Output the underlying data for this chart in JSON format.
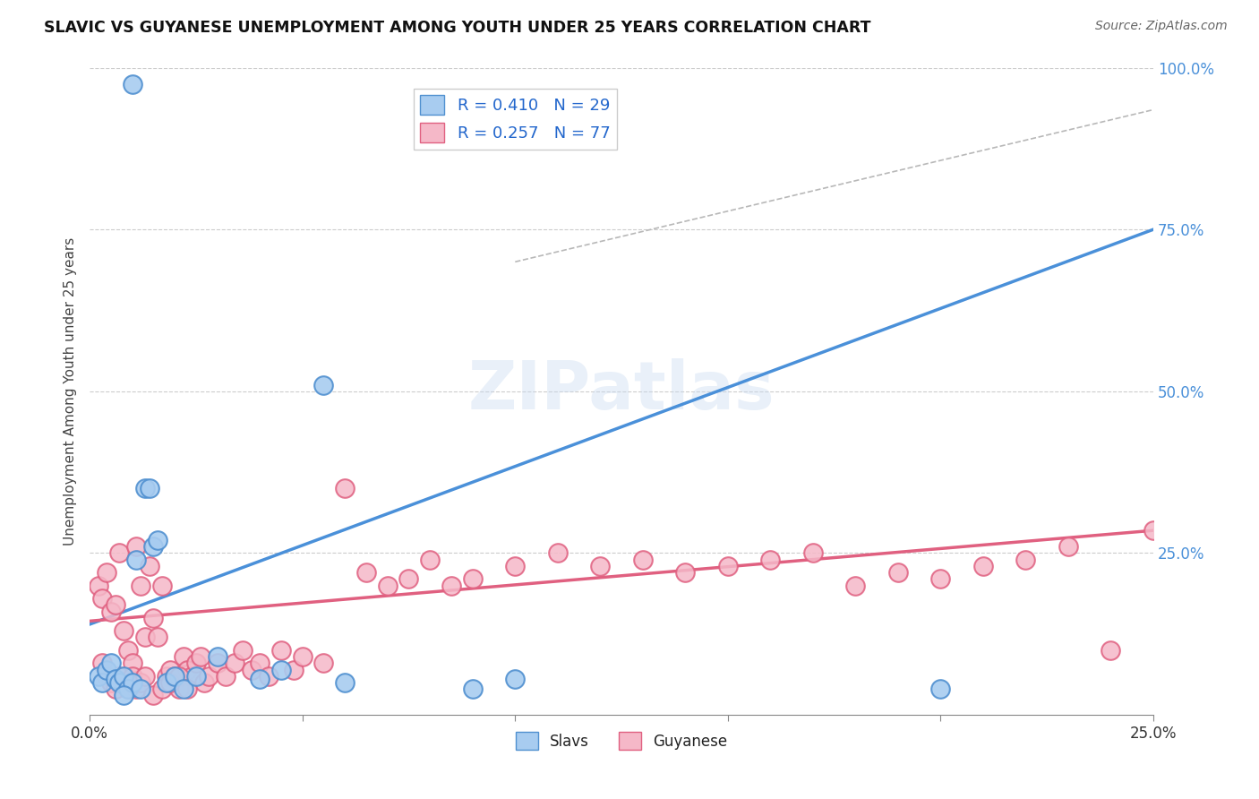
{
  "title": "SLAVIC VS GUYANESE UNEMPLOYMENT AMONG YOUTH UNDER 25 YEARS CORRELATION CHART",
  "source": "Source: ZipAtlas.com",
  "ylabel": "Unemployment Among Youth under 25 years",
  "xmin": 0.0,
  "xmax": 0.25,
  "ymin": 0.0,
  "ymax": 1.0,
  "slavs_R": 0.41,
  "slavs_N": 29,
  "guyanese_R": 0.257,
  "guyanese_N": 77,
  "slavs_color": "#a8ccf0",
  "guyanese_color": "#f5b8c8",
  "slavs_edge_color": "#5090d0",
  "guyanese_edge_color": "#e06080",
  "trend_slavs_color": "#4a90d9",
  "trend_guyanese_color": "#e06080",
  "watermark": "ZIPatlas",
  "bg_color": "#ffffff",
  "grid_color": "#cccccc",
  "slavs_x": [
    0.002,
    0.003,
    0.004,
    0.005,
    0.006,
    0.007,
    0.008,
    0.009,
    0.01,
    0.011,
    0.013,
    0.014,
    0.015,
    0.016,
    0.018,
    0.02,
    0.022,
    0.025,
    0.03,
    0.04,
    0.045,
    0.055,
    0.06,
    0.09,
    0.1,
    0.2,
    0.01,
    0.012,
    0.008
  ],
  "slavs_y": [
    0.06,
    0.05,
    0.07,
    0.08,
    0.055,
    0.05,
    0.06,
    0.04,
    0.05,
    0.24,
    0.35,
    0.35,
    0.26,
    0.27,
    0.05,
    0.06,
    0.04,
    0.06,
    0.09,
    0.055,
    0.07,
    0.51,
    0.05,
    0.04,
    0.055,
    0.04,
    0.975,
    0.04,
    0.03
  ],
  "guyanese_x": [
    0.002,
    0.003,
    0.004,
    0.005,
    0.006,
    0.007,
    0.008,
    0.009,
    0.01,
    0.011,
    0.012,
    0.013,
    0.014,
    0.015,
    0.016,
    0.017,
    0.018,
    0.019,
    0.02,
    0.021,
    0.022,
    0.023,
    0.024,
    0.025,
    0.026,
    0.027,
    0.028,
    0.03,
    0.032,
    0.034,
    0.036,
    0.038,
    0.04,
    0.042,
    0.045,
    0.048,
    0.05,
    0.055,
    0.06,
    0.065,
    0.07,
    0.075,
    0.08,
    0.085,
    0.09,
    0.003,
    0.004,
    0.005,
    0.006,
    0.007,
    0.008,
    0.009,
    0.01,
    0.011,
    0.012,
    0.013,
    0.015,
    0.017,
    0.019,
    0.021,
    0.023,
    0.1,
    0.11,
    0.12,
    0.13,
    0.14,
    0.15,
    0.16,
    0.17,
    0.18,
    0.19,
    0.2,
    0.21,
    0.22,
    0.23,
    0.24,
    0.25
  ],
  "guyanese_y": [
    0.2,
    0.18,
    0.22,
    0.16,
    0.17,
    0.25,
    0.13,
    0.1,
    0.08,
    0.26,
    0.2,
    0.12,
    0.23,
    0.15,
    0.12,
    0.2,
    0.06,
    0.07,
    0.06,
    0.04,
    0.09,
    0.07,
    0.06,
    0.08,
    0.09,
    0.05,
    0.06,
    0.08,
    0.06,
    0.08,
    0.1,
    0.07,
    0.08,
    0.06,
    0.1,
    0.07,
    0.09,
    0.08,
    0.35,
    0.22,
    0.2,
    0.21,
    0.24,
    0.2,
    0.21,
    0.08,
    0.06,
    0.05,
    0.04,
    0.06,
    0.05,
    0.04,
    0.06,
    0.04,
    0.05,
    0.06,
    0.03,
    0.04,
    0.05,
    0.06,
    0.04,
    0.23,
    0.25,
    0.23,
    0.24,
    0.22,
    0.23,
    0.24,
    0.25,
    0.2,
    0.22,
    0.21,
    0.23,
    0.24,
    0.26,
    0.1,
    0.285
  ]
}
